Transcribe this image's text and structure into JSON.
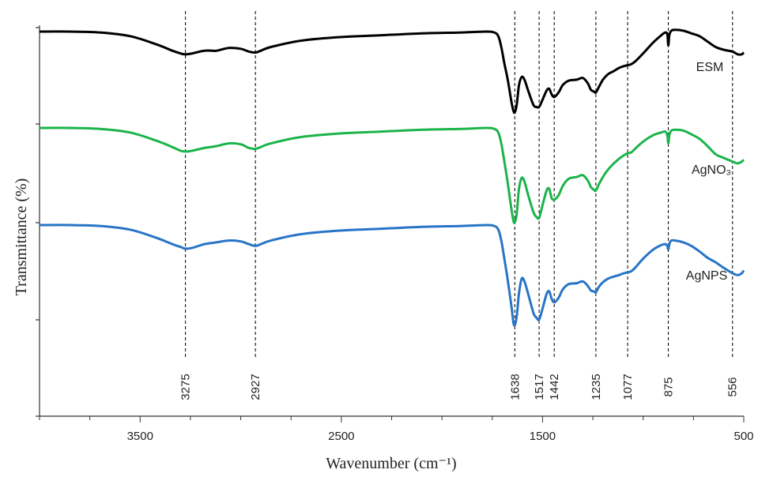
{
  "chart_data": {
    "type": "line",
    "title": "",
    "xlabel": "Wavenumber (cm⁻¹)",
    "ylabel": "Transmittance (%)",
    "xlim": [
      4000,
      500
    ],
    "x_reversed": true,
    "x_ticks": [
      3500,
      2500,
      1500,
      500
    ],
    "x_tick_labels": [
      "3500",
      "2500",
      "1500",
      "500"
    ],
    "grid": false,
    "peaks": [
      {
        "x": 3275,
        "label": "3275"
      },
      {
        "x": 2927,
        "label": "2927"
      },
      {
        "x": 1638,
        "label": "1638"
      },
      {
        "x": 1517,
        "label": "1517"
      },
      {
        "x": 1442,
        "label": "1442"
      },
      {
        "x": 1235,
        "label": "1235"
      },
      {
        "x": 1077,
        "label": "1077"
      },
      {
        "x": 875,
        "label": "875"
      },
      {
        "x": 556,
        "label": "556"
      }
    ],
    "series": [
      {
        "name": "ESM",
        "color": "#000000",
        "x": [
          4000,
          3850,
          3700,
          3550,
          3420,
          3340,
          3300,
          3275,
          3240,
          3180,
          3120,
          3060,
          3000,
          2960,
          2927,
          2900,
          2850,
          2700,
          2500,
          2300,
          2100,
          1900,
          1780,
          1740,
          1720,
          1705,
          1690,
          1672,
          1655,
          1645,
          1638,
          1628,
          1617,
          1604,
          1590,
          1570,
          1545,
          1530,
          1517,
          1500,
          1480,
          1467,
          1455,
          1442,
          1420,
          1400,
          1370,
          1330,
          1300,
          1275,
          1260,
          1245,
          1235,
          1220,
          1200,
          1175,
          1150,
          1120,
          1095,
          1077,
          1060,
          1040,
          1000,
          950,
          910,
          890,
          880,
          875,
          870,
          860,
          840,
          800,
          760,
          720,
          680,
          640,
          600,
          556,
          530,
          510,
          500
        ],
        "y": [
          97,
          97,
          96,
          92,
          83,
          76,
          73,
          72,
          73,
          76,
          76,
          79,
          78,
          75,
          74,
          76,
          80,
          87,
          91,
          93,
          95,
          96,
          97,
          96,
          92,
          80,
          62,
          43,
          20,
          10,
          8,
          17,
          38,
          47,
          44,
          31,
          16,
          14,
          14,
          22,
          32,
          34,
          28,
          25,
          30,
          38,
          43,
          44,
          46,
          40,
          33,
          31,
          30,
          36,
          44,
          50,
          53,
          57,
          59,
          60,
          61,
          64,
          73,
          85,
          93,
          96,
          94,
          82,
          93,
          98,
          99,
          98,
          95,
          92,
          86,
          80,
          77,
          75,
          72,
          72,
          74
        ]
      },
      {
        "name": "AgNO₃",
        "color": "#1bb44a",
        "x": [
          4000,
          3850,
          3700,
          3550,
          3420,
          3340,
          3300,
          3275,
          3240,
          3180,
          3120,
          3060,
          3000,
          2960,
          2927,
          2900,
          2850,
          2700,
          2500,
          2300,
          2100,
          1900,
          1780,
          1740,
          1720,
          1705,
          1690,
          1672,
          1655,
          1645,
          1638,
          1628,
          1617,
          1604,
          1590,
          1570,
          1545,
          1530,
          1517,
          1500,
          1480,
          1467,
          1455,
          1442,
          1420,
          1400,
          1370,
          1330,
          1300,
          1275,
          1260,
          1245,
          1235,
          1220,
          1200,
          1175,
          1150,
          1120,
          1095,
          1077,
          1060,
          1040,
          1000,
          950,
          910,
          890,
          880,
          875,
          870,
          860,
          840,
          800,
          760,
          720,
          680,
          640,
          600,
          556,
          530,
          510,
          500
        ],
        "y": [
          97,
          97,
          96,
          92,
          83,
          76,
          72,
          71,
          72,
          75,
          77,
          80,
          79,
          75,
          74,
          76,
          80,
          87,
          91,
          93,
          95,
          96,
          97,
          96,
          92,
          80,
          60,
          35,
          8,
          -5,
          -7,
          3,
          30,
          42,
          38,
          22,
          4,
          -1,
          -2,
          12,
          28,
          30,
          20,
          18,
          23,
          33,
          41,
          43,
          45,
          39,
          32,
          29,
          28,
          35,
          43,
          51,
          57,
          63,
          67,
          69,
          70,
          74,
          82,
          89,
          92,
          93,
          89,
          80,
          89,
          94,
          95,
          94,
          90,
          85,
          77,
          68,
          64,
          60,
          58,
          60,
          62
        ]
      },
      {
        "name": "AgNPS",
        "color": "#2874c7",
        "x": [
          4000,
          3850,
          3700,
          3550,
          3420,
          3340,
          3300,
          3275,
          3240,
          3180,
          3120,
          3060,
          3000,
          2960,
          2927,
          2900,
          2850,
          2700,
          2500,
          2300,
          2100,
          1900,
          1780,
          1740,
          1720,
          1705,
          1690,
          1672,
          1655,
          1645,
          1638,
          1628,
          1617,
          1604,
          1590,
          1570,
          1545,
          1530,
          1517,
          1500,
          1480,
          1467,
          1455,
          1442,
          1420,
          1400,
          1370,
          1330,
          1300,
          1275,
          1260,
          1245,
          1235,
          1220,
          1200,
          1175,
          1150,
          1120,
          1095,
          1077,
          1060,
          1040,
          1000,
          950,
          910,
          890,
          880,
          875,
          870,
          860,
          840,
          800,
          760,
          720,
          680,
          640,
          600,
          556,
          530,
          510,
          500
        ],
        "y": [
          97,
          97,
          96,
          92,
          83,
          76,
          73,
          71,
          72,
          76,
          78,
          80,
          79,
          76,
          74,
          76,
          80,
          87,
          91,
          93,
          95,
          96,
          97,
          96,
          92,
          80,
          60,
          35,
          8,
          -10,
          -13,
          -3,
          22,
          38,
          35,
          20,
          0,
          -5,
          -7,
          5,
          21,
          24,
          16,
          12,
          17,
          26,
          32,
          33,
          35,
          30,
          25,
          24,
          23,
          29,
          34,
          38,
          40,
          42,
          44,
          45,
          46,
          50,
          60,
          70,
          75,
          76,
          74,
          70,
          76,
          80,
          80,
          78,
          74,
          68,
          61,
          56,
          50,
          44,
          42,
          44,
          47
        ]
      }
    ]
  }
}
